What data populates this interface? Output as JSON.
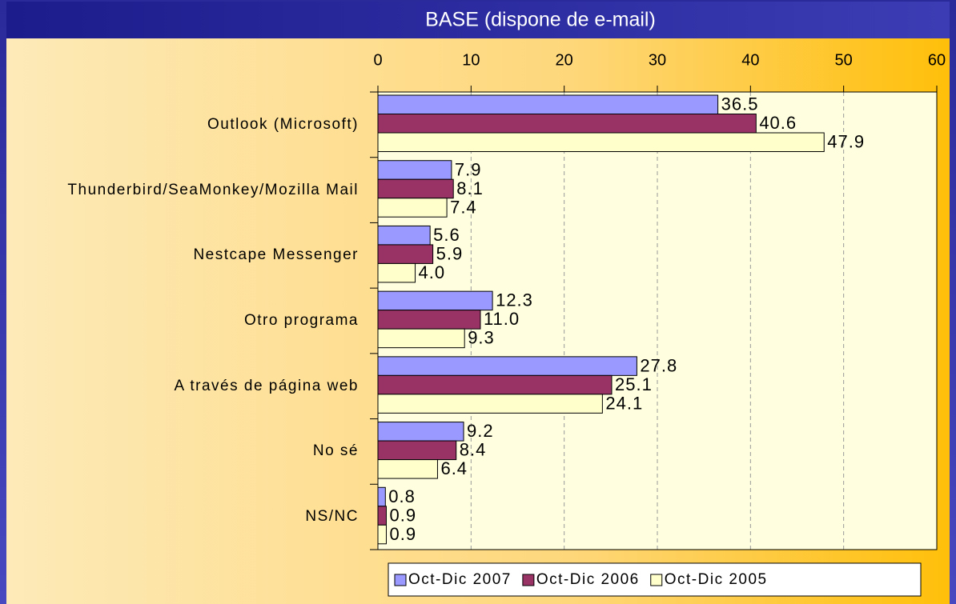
{
  "chart_data": {
    "type": "bar",
    "orientation": "horizontal",
    "title": "BASE (dispone de e-mail)",
    "categories": [
      "Outlook (Microsoft)",
      "Thunderbird/SeaMonkey/Mozilla Mail",
      "Nestcape Messenger",
      "Otro programa",
      "A través de página web",
      "No sé",
      "NS/NC"
    ],
    "series": [
      {
        "name": "Oct-Dic 2007",
        "color": "#9999ff",
        "values": [
          36.5,
          7.9,
          5.6,
          12.3,
          27.8,
          9.2,
          0.8
        ],
        "value_labels": [
          "36.5",
          "7.9",
          "5.6",
          "12.3",
          "27.8",
          "9.2",
          "0.8"
        ]
      },
      {
        "name": "Oct-Dic 2006",
        "color": "#993366",
        "values": [
          40.6,
          8.1,
          5.9,
          11.0,
          25.1,
          8.4,
          0.9
        ],
        "value_labels": [
          "40.6",
          "8.1",
          "5.9",
          "11.0",
          "25.1",
          "8.4",
          "0.9"
        ]
      },
      {
        "name": "Oct-Dic 2005",
        "color": "#ffffcc",
        "values": [
          47.9,
          7.4,
          4.0,
          9.3,
          24.1,
          6.4,
          0.9
        ],
        "value_labels": [
          "47.9",
          "7.4",
          "4.0",
          "9.3",
          "24.1",
          "6.4",
          "0.9"
        ]
      }
    ],
    "xlim": [
      0,
      60
    ],
    "xticks": [
      0,
      10,
      20,
      30,
      40,
      50,
      60
    ],
    "grid": true,
    "legend": "bottom"
  }
}
